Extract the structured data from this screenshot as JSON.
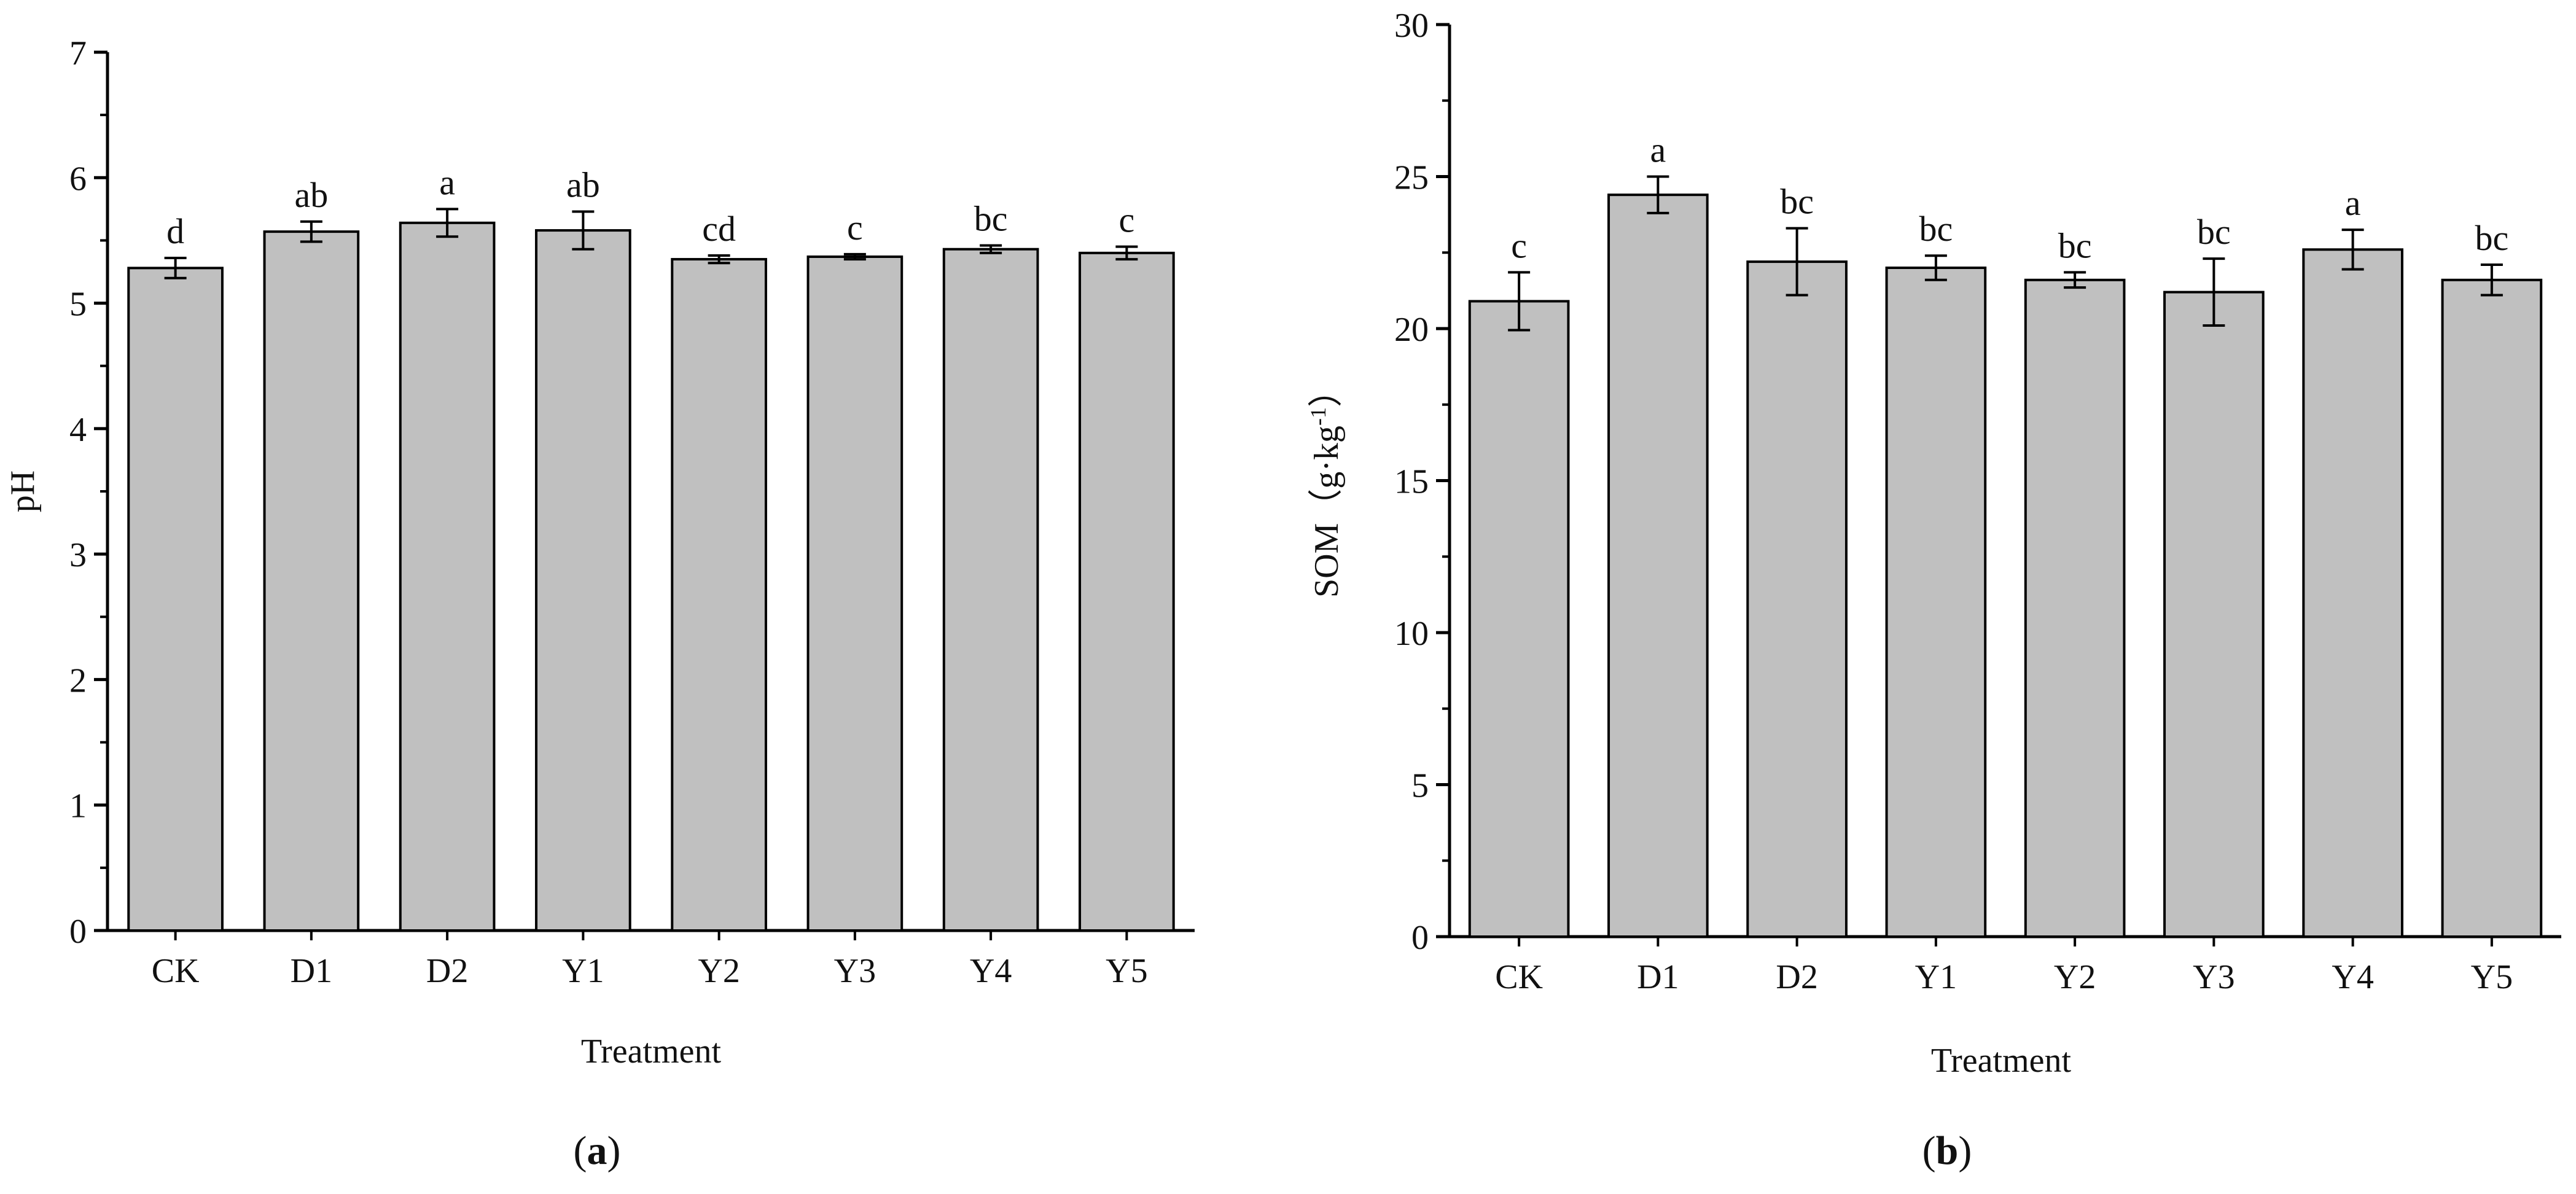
{
  "figure": {
    "panels": [
      {
        "label_open": "(",
        "label_letter": "a",
        "label_close": ")"
      },
      {
        "label_open": "(",
        "label_letter": "b",
        "label_close": ")"
      }
    ]
  },
  "colors": {
    "bar_fill": "#c0c0c0",
    "bar_stroke": "#000000",
    "axis": "#000000"
  },
  "chart_data": [
    {
      "type": "bar",
      "title": "",
      "xlabel": "Treatment",
      "ylabel": "pH",
      "ylim": [
        0,
        7
      ],
      "yticks": [
        0,
        1,
        2,
        3,
        4,
        5,
        6,
        7
      ],
      "categories": [
        "CK",
        "D1",
        "D2",
        "Y1",
        "Y2",
        "Y3",
        "Y4",
        "Y5"
      ],
      "values": [
        5.28,
        5.57,
        5.64,
        5.58,
        5.35,
        5.37,
        5.43,
        5.4
      ],
      "errors": [
        0.08,
        0.08,
        0.11,
        0.15,
        0.03,
        0.02,
        0.03,
        0.05
      ],
      "significance": [
        "d",
        "ab",
        "a",
        "ab",
        "cd",
        "c",
        "bc",
        "c"
      ],
      "grid": false
    },
    {
      "type": "bar",
      "title": "",
      "xlabel": "Treatment",
      "ylabel": "SOM（g·kg",
      "ylabel_sup": "-1",
      "ylabel_end": "）",
      "ylim": [
        0,
        30
      ],
      "yticks": [
        0,
        5,
        10,
        15,
        20,
        25,
        30
      ],
      "categories": [
        "CK",
        "D1",
        "D2",
        "Y1",
        "Y2",
        "Y3",
        "Y4",
        "Y5"
      ],
      "values": [
        20.9,
        24.4,
        22.2,
        22.0,
        21.6,
        21.2,
        22.6,
        21.6
      ],
      "errors": [
        0.95,
        0.6,
        1.1,
        0.4,
        0.25,
        1.1,
        0.65,
        0.5
      ],
      "significance": [
        "c",
        "a",
        "bc",
        "bc",
        "bc",
        "bc",
        "a",
        "bc"
      ],
      "grid": false
    }
  ]
}
